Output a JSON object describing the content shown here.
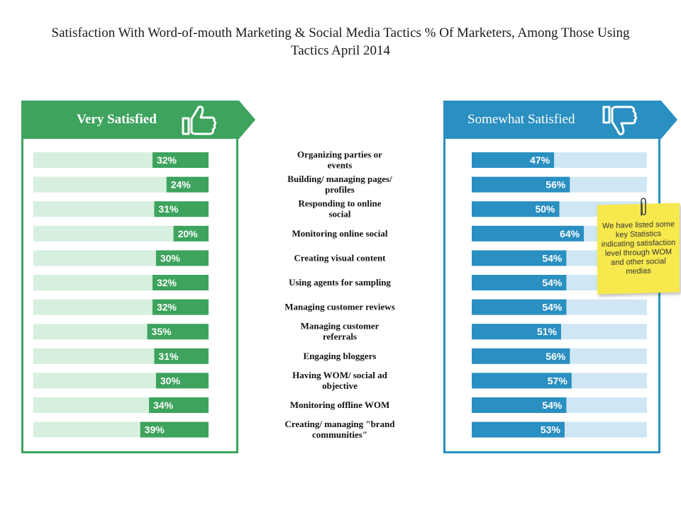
{
  "chart_data": {
    "type": "bar",
    "title": "Satisfaction With Word-of-mouth Marketing & Social Media Tactics % Of Marketers, Among Those Using Tactics April 2014",
    "xlabel": "",
    "ylabel": "",
    "ylim": [
      0,
      100
    ],
    "categories": [
      "Organizing parties or events",
      "Building/  managing pages/ profiles",
      "Responding to online social",
      "Monitoring online social",
      "Creating visual content",
      "Using agents for sampling",
      "Managing customer reviews",
      "Managing customer referrals",
      "Engaging bloggers",
      "Having WOM/ social ad objective",
      "Monitoring offline WOM",
      "Creating/ managing \"brand communities\""
    ],
    "series": [
      {
        "name": "Very Satisfied",
        "values": [
          32,
          24,
          31,
          20,
          30,
          32,
          32,
          35,
          31,
          30,
          34,
          39
        ]
      },
      {
        "name": "Somewhat Satisfied",
        "values": [
          47,
          56,
          50,
          64,
          54,
          54,
          54,
          51,
          56,
          57,
          54,
          53
        ]
      }
    ]
  },
  "colors": {
    "green": "#3da35d",
    "green_light": "#d6efdf",
    "blue": "#2a8fc1",
    "blue_light": "#cfe7f4"
  },
  "left_panel": {
    "label": "Very Satisfied",
    "icon": "thumbs-up-icon"
  },
  "right_panel": {
    "label": "Somewhat Satisfied",
    "icon": "thumbs-down-icon"
  },
  "note": {
    "text": "We have listed some key Statistics indicating satisfaction level through WOM and other social medias",
    "icon": "paperclip-icon"
  }
}
